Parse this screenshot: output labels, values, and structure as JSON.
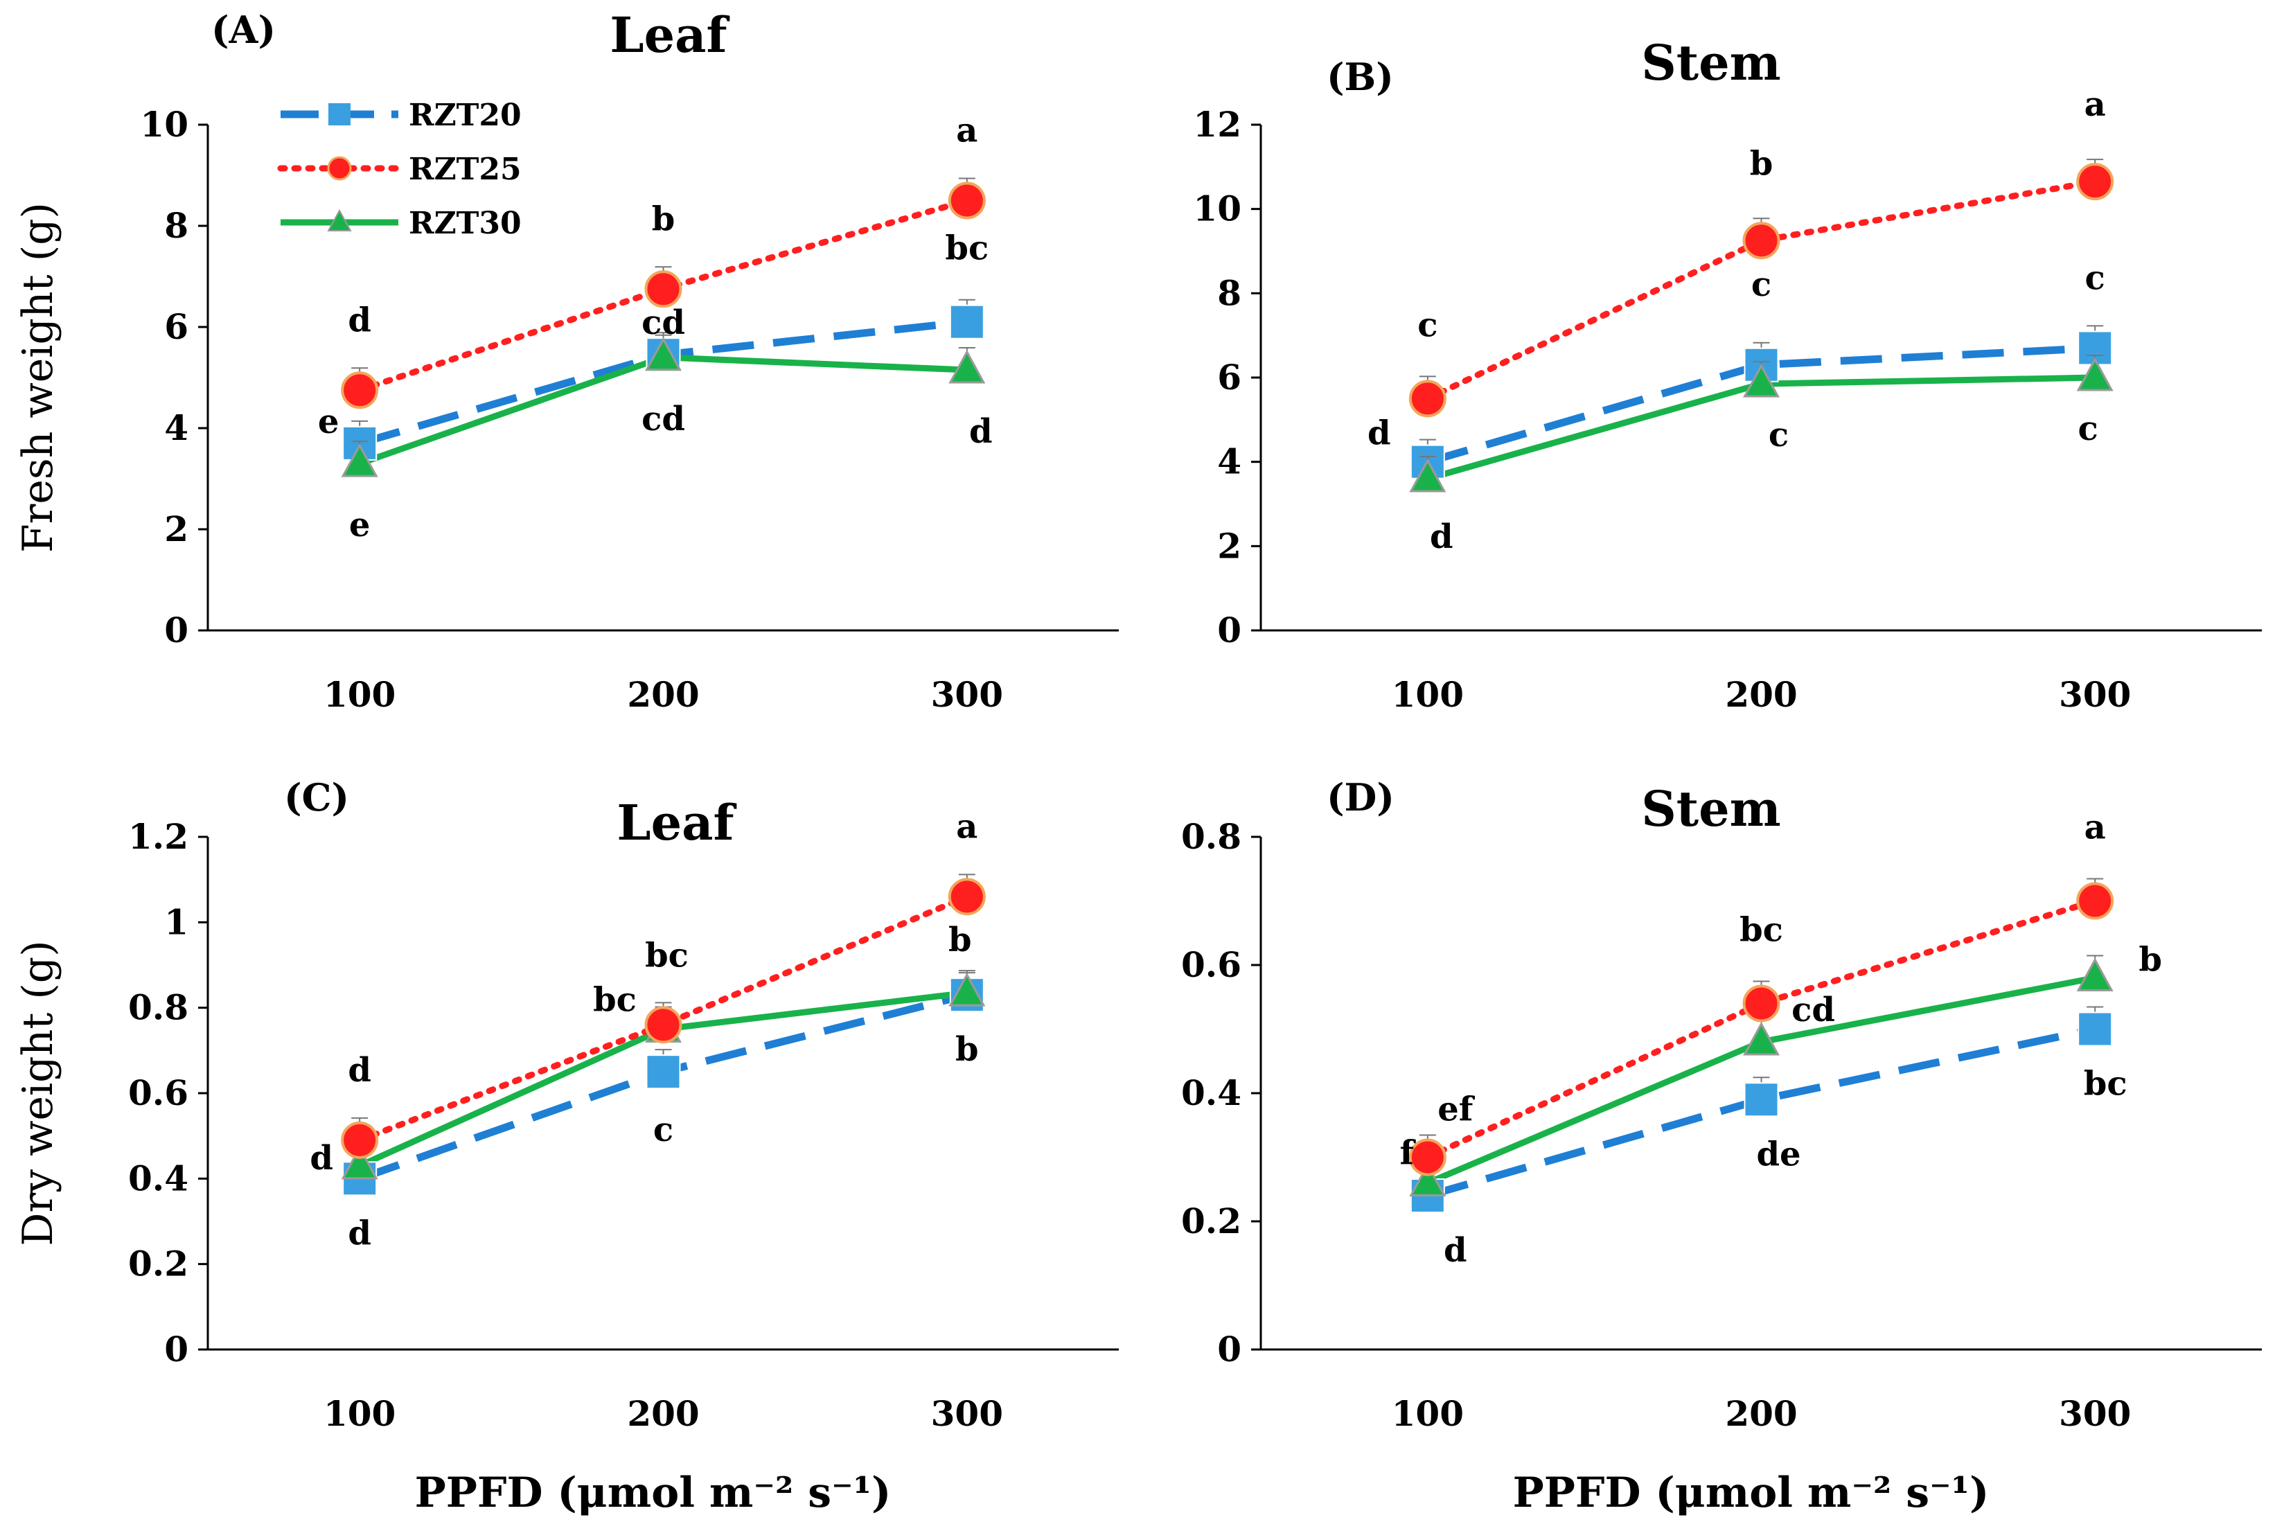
{
  "figure": {
    "series_styles": {
      "RZT20": {
        "color": "#1f7fd4",
        "marker_color": "#3a9fe0",
        "marker": "square",
        "dash": "dashed"
      },
      "RZT25": {
        "color": "#ff1f1f",
        "marker_color": "#ff1f1f",
        "marker": "circle",
        "dash": "dotted"
      },
      "RZT30": {
        "color": "#19b24a",
        "marker_color": "#19b24a",
        "marker": "triangle",
        "dash": "solid"
      }
    },
    "legend": [
      "RZT20",
      "RZT25",
      "RZT30"
    ]
  },
  "chart_data": [
    {
      "id": "A",
      "type": "line",
      "panel_label": "(A)",
      "title": "Leaf",
      "ylabel": "Fresh weight (g)",
      "xlabel": "",
      "categories": [
        "100",
        "200",
        "300"
      ],
      "ylim": [
        0,
        10
      ],
      "yticks": [
        "0",
        "2",
        "4",
        "6",
        "8",
        "10"
      ],
      "series": [
        {
          "name": "RZT20",
          "values": [
            3.7,
            5.45,
            6.1
          ],
          "letters": [
            "e",
            "cd",
            "bc"
          ]
        },
        {
          "name": "RZT25",
          "values": [
            4.75,
            6.75,
            8.5
          ],
          "letters": [
            "d",
            "b",
            "a"
          ]
        },
        {
          "name": "RZT30",
          "values": [
            3.3,
            5.4,
            5.15
          ],
          "letters": [
            "e",
            "cd",
            "d"
          ]
        }
      ]
    },
    {
      "id": "B",
      "type": "line",
      "panel_label": "(B)",
      "title": "Stem",
      "ylabel": "",
      "xlabel": "",
      "categories": [
        "100",
        "200",
        "300"
      ],
      "ylim": [
        0,
        12
      ],
      "yticks": [
        "0",
        "2",
        "4",
        "6",
        "8",
        "10",
        "12"
      ],
      "series": [
        {
          "name": "RZT20",
          "values": [
            4.0,
            6.3,
            6.7
          ],
          "letters": [
            "d",
            "c",
            "c"
          ]
        },
        {
          "name": "RZT25",
          "values": [
            5.5,
            9.25,
            10.65
          ],
          "letters": [
            "c",
            "b",
            "a"
          ]
        },
        {
          "name": "RZT30",
          "values": [
            3.6,
            5.85,
            6.0
          ],
          "letters": [
            "d",
            "c",
            "c"
          ]
        }
      ]
    },
    {
      "id": "C",
      "type": "line",
      "panel_label": "(C)",
      "title": "Leaf",
      "ylabel": "Dry weight (g)",
      "xlabel": "PPFD (μmol m⁻² s⁻¹)",
      "categories": [
        "100",
        "200",
        "300"
      ],
      "ylim": [
        0,
        1.2
      ],
      "yticks": [
        "0",
        "0.2",
        "0.4",
        "0.6",
        "0.8",
        "1",
        "1.2"
      ],
      "series": [
        {
          "name": "RZT20",
          "values": [
            0.4,
            0.65,
            0.83
          ],
          "letters": [
            "d",
            "c",
            "b"
          ]
        },
        {
          "name": "RZT25",
          "values": [
            0.49,
            0.76,
            1.06
          ],
          "letters": [
            "d",
            "bc",
            "a"
          ]
        },
        {
          "name": "RZT30",
          "values": [
            0.43,
            0.75,
            0.835
          ],
          "letters": [
            "d",
            "bc",
            "b"
          ]
        }
      ]
    },
    {
      "id": "D",
      "type": "line",
      "panel_label": "(D)",
      "title": "Stem",
      "ylabel": "",
      "xlabel": "PPFD (μmol m⁻² s⁻¹)",
      "categories": [
        "100",
        "200",
        "300"
      ],
      "ylim": [
        0,
        0.8
      ],
      "yticks": [
        "0",
        "0.2",
        "0.4",
        "0.6",
        "0.8"
      ],
      "series": [
        {
          "name": "RZT20",
          "values": [
            0.24,
            0.39,
            0.5
          ],
          "letters": [
            "d",
            "de",
            "bc"
          ]
        },
        {
          "name": "RZT25",
          "values": [
            0.3,
            0.54,
            0.7
          ],
          "letters": [
            "f",
            "bc",
            "a"
          ]
        },
        {
          "name": "RZT30",
          "values": [
            0.26,
            0.48,
            0.58
          ],
          "letters": [
            "ef",
            "cd",
            "b"
          ]
        }
      ]
    }
  ]
}
